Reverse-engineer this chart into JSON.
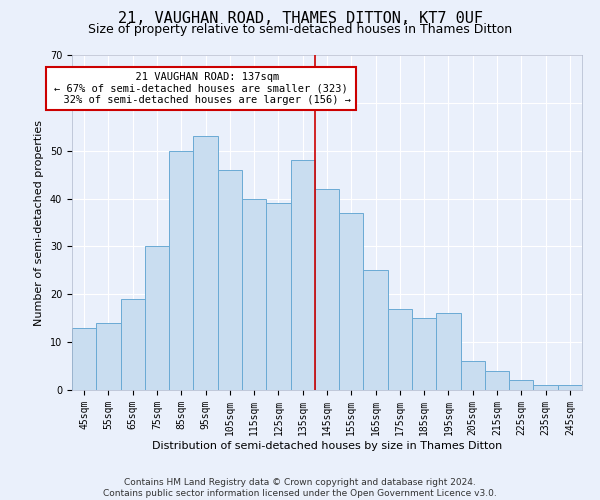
{
  "title": "21, VAUGHAN ROAD, THAMES DITTON, KT7 0UF",
  "subtitle": "Size of property relative to semi-detached houses in Thames Ditton",
  "xlabel": "Distribution of semi-detached houses by size in Thames Ditton",
  "ylabel": "Number of semi-detached properties",
  "footer_line1": "Contains HM Land Registry data © Crown copyright and database right 2024.",
  "footer_line2": "Contains public sector information licensed under the Open Government Licence v3.0.",
  "categories": [
    "45sqm",
    "55sqm",
    "65sqm",
    "75sqm",
    "85sqm",
    "95sqm",
    "105sqm",
    "115sqm",
    "125sqm",
    "135sqm",
    "145sqm",
    "155sqm",
    "165sqm",
    "175sqm",
    "185sqm",
    "195sqm",
    "205sqm",
    "215sqm",
    "225sqm",
    "235sqm",
    "245sqm"
  ],
  "values": [
    13,
    14,
    19,
    30,
    50,
    53,
    46,
    40,
    39,
    48,
    42,
    37,
    25,
    17,
    15,
    16,
    6,
    4,
    2,
    1,
    1
  ],
  "bar_color": "#c9ddf0",
  "bar_edge_color": "#6aaad4",
  "vline_color": "#cc0000",
  "vline_x_index": 9.5,
  "box_color": "#cc0000",
  "property_label": "21 VAUGHAN ROAD: 137sqm",
  "pct_smaller": 67,
  "count_smaller": 323,
  "pct_larger": 32,
  "count_larger": 156,
  "ylim": [
    0,
    70
  ],
  "yticks": [
    0,
    10,
    20,
    30,
    40,
    50,
    60,
    70
  ],
  "bg_color": "#eaf0fb",
  "grid_color": "#ffffff",
  "fig_bg_color": "#eaf0fb",
  "title_fontsize": 11,
  "subtitle_fontsize": 9,
  "axis_label_fontsize": 8,
  "tick_fontsize": 7,
  "footer_fontsize": 6.5,
  "annot_fontsize": 7.5
}
